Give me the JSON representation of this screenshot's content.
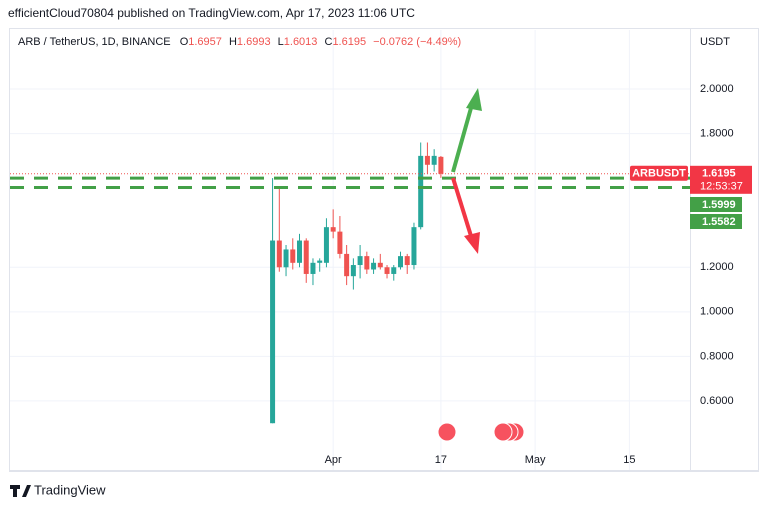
{
  "header": "efficientCloud70804 published on TradingView.com, Apr 17, 2023 11:06 UTC",
  "footer": "TradingView",
  "chart_data": {
    "type": "candlestick",
    "title": "ARB / TetherUS, 1D, BINANCE",
    "ohlc_letters": [
      "O",
      "H",
      "L",
      "C"
    ],
    "change_label": "−0.0762 (−4.49%)",
    "currency": "USDT",
    "symbol": "ARBUSDT",
    "countdown": "12:53:37",
    "up_color": "#26a69a",
    "down_color": "#ef5350",
    "grid": true,
    "x": [
      "2023-03-23",
      "2023-03-24",
      "2023-03-25",
      "2023-03-26",
      "2023-03-27",
      "2023-03-28",
      "2023-03-29",
      "2023-03-30",
      "2023-03-31",
      "2023-04-01",
      "2023-04-02",
      "2023-04-03",
      "2023-04-04",
      "2023-04-05",
      "2023-04-06",
      "2023-04-07",
      "2023-04-08",
      "2023-04-09",
      "2023-04-10",
      "2023-04-11",
      "2023-04-12",
      "2023-04-13",
      "2023-04-14",
      "2023-04-15",
      "2023-04-16",
      "2023-04-17"
    ],
    "open": [
      0.5,
      1.32,
      1.2,
      1.28,
      1.22,
      1.32,
      1.17,
      1.22,
      1.22,
      1.38,
      1.36,
      1.26,
      1.16,
      1.21,
      1.25,
      1.19,
      1.22,
      1.2,
      1.17,
      1.2,
      1.25,
      1.21,
      1.38,
      1.7,
      1.66,
      1.6957
    ],
    "high": [
      1.6,
      1.56,
      1.3,
      1.33,
      1.35,
      1.33,
      1.24,
      1.24,
      1.42,
      1.46,
      1.43,
      1.3,
      1.24,
      1.3,
      1.27,
      1.24,
      1.26,
      1.21,
      1.21,
      1.27,
      1.26,
      1.4,
      1.76,
      1.76,
      1.73,
      1.6993
    ],
    "low": [
      0.5,
      1.18,
      1.16,
      1.19,
      1.2,
      1.13,
      1.12,
      1.18,
      1.2,
      1.33,
      1.24,
      1.12,
      1.1,
      1.15,
      1.17,
      1.17,
      1.19,
      1.15,
      1.14,
      1.19,
      1.17,
      1.19,
      1.37,
      1.62,
      1.63,
      1.6013
    ],
    "close": [
      1.32,
      1.2,
      1.28,
      1.22,
      1.32,
      1.17,
      1.22,
      1.23,
      1.38,
      1.36,
      1.26,
      1.16,
      1.21,
      1.25,
      1.19,
      1.22,
      1.2,
      1.17,
      1.2,
      1.25,
      1.21,
      1.38,
      1.7,
      1.66,
      1.7,
      1.6195
    ],
    "levels": [
      {
        "value": 1.5999,
        "color": "#43a047"
      },
      {
        "value": 1.5582,
        "color": "#43a047"
      }
    ],
    "xlim": [
      "2023-02-12",
      "2023-05-24"
    ],
    "xticks": [
      {
        "value": "2023-04-01",
        "label": "Apr"
      },
      {
        "value": "2023-04-17",
        "label": "17"
      },
      {
        "value": "2023-05-01",
        "label": "May"
      },
      {
        "value": "2023-05-15",
        "label": "15"
      }
    ],
    "ylim": [
      0.29,
      2.265
    ],
    "yticks": [
      {
        "value": 0.6,
        "label": "0.6000"
      },
      {
        "value": 0.8,
        "label": "0.8000"
      },
      {
        "value": 1.0,
        "label": "1.0000"
      },
      {
        "value": 1.2,
        "label": "1.2000"
      },
      {
        "value": 1.8,
        "label": "1.8000"
      },
      {
        "value": 2.0,
        "label": "2.0000"
      }
    ]
  }
}
